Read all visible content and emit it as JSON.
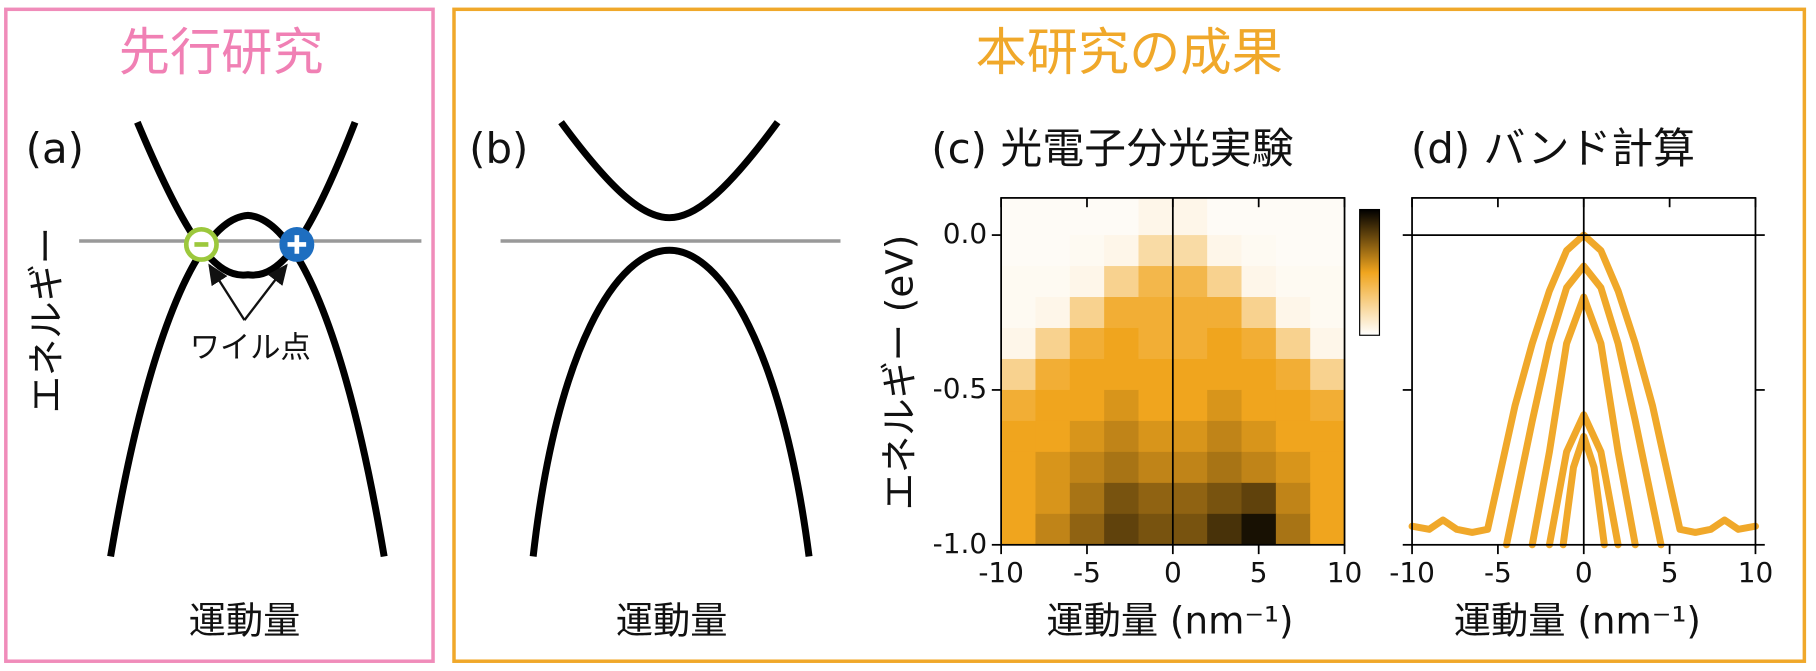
{
  "header": {
    "previous_work": "先行研究",
    "this_work": "本研究の成果"
  },
  "schematic_a": {
    "label": "(a)",
    "ylabel": "エネルギー",
    "annotation": "ワイル点",
    "xlabel": "運動量"
  },
  "schematic_b": {
    "label": "(b)",
    "xlabel": "運動量"
  },
  "chart_data": [
    {
      "type": "heatmap",
      "title": "(c) 光電子分光実験",
      "xlabel": "運動量 (nm⁻¹)",
      "ylabel": "エネルギー (eV)",
      "xlim": [
        -10,
        10
      ],
      "ylim": [
        -1.0,
        0.12
      ],
      "xticks": [
        -10,
        -5,
        0,
        5,
        10
      ],
      "yticks": [
        {
          "value": 0,
          "label": "0.0"
        },
        {
          "value": -0.5,
          "label": "-0.5"
        },
        {
          "value": -1.0,
          "label": "-1.0"
        }
      ],
      "xzero": true,
      "yzero": false,
      "colormap": [
        "#ffffff",
        "#f0a51e",
        "#000000"
      ],
      "xbins": [
        -10,
        -8,
        -6,
        -4,
        -2,
        0,
        2,
        4,
        6,
        8,
        10
      ],
      "ybins": [
        0.12,
        0,
        -0.1,
        -0.2,
        -0.3,
        -0.4,
        -0.5,
        -0.6,
        -0.7,
        -0.8,
        -0.9,
        -1.0
      ],
      "z": [
        [
          0.02,
          0.02,
          0.02,
          0.02,
          0.05,
          0.05,
          0.02,
          0.02,
          0.02,
          0.02
        ],
        [
          0.02,
          0.02,
          0.03,
          0.05,
          0.2,
          0.2,
          0.05,
          0.03,
          0.02,
          0.02
        ],
        [
          0.03,
          0.03,
          0.05,
          0.25,
          0.4,
          0.4,
          0.25,
          0.05,
          0.03,
          0.03
        ],
        [
          0.03,
          0.05,
          0.25,
          0.45,
          0.45,
          0.45,
          0.45,
          0.25,
          0.05,
          0.03
        ],
        [
          0.05,
          0.25,
          0.45,
          0.5,
          0.45,
          0.45,
          0.5,
          0.45,
          0.25,
          0.05
        ],
        [
          0.25,
          0.45,
          0.5,
          0.5,
          0.5,
          0.5,
          0.5,
          0.5,
          0.45,
          0.25
        ],
        [
          0.45,
          0.5,
          0.5,
          0.55,
          0.5,
          0.5,
          0.55,
          0.5,
          0.5,
          0.45
        ],
        [
          0.5,
          0.5,
          0.55,
          0.6,
          0.55,
          0.55,
          0.6,
          0.55,
          0.5,
          0.5
        ],
        [
          0.5,
          0.55,
          0.6,
          0.65,
          0.6,
          0.6,
          0.65,
          0.6,
          0.55,
          0.5
        ],
        [
          0.5,
          0.55,
          0.65,
          0.75,
          0.7,
          0.7,
          0.75,
          0.8,
          0.6,
          0.5
        ],
        [
          0.5,
          0.6,
          0.7,
          0.8,
          0.75,
          0.75,
          0.85,
          0.95,
          0.65,
          0.5
        ]
      ]
    },
    {
      "type": "line",
      "title": "(d) バンド計算",
      "xlabel": "運動量 (nm⁻¹)",
      "xlim": [
        -10,
        10
      ],
      "ylim": [
        -1.0,
        0.12
      ],
      "xticks": [
        -10,
        -5,
        0,
        5,
        10
      ],
      "yticks": [
        0,
        -0.5,
        -1.0
      ],
      "ytick_labels": false,
      "xzero": true,
      "yzero": true,
      "series": [
        {
          "color": "#f0a82a",
          "x": [
            -10,
            -9,
            -8.2,
            -7.4,
            -6.5,
            -5.6,
            -5,
            -4,
            -3,
            -2,
            -1,
            0,
            1,
            2,
            3,
            4,
            5,
            5.6,
            6.5,
            7.4,
            8.2,
            9,
            10
          ],
          "values": [
            -0.94,
            -0.95,
            -0.92,
            -0.95,
            -0.96,
            -0.95,
            -0.8,
            -0.55,
            -0.35,
            -0.18,
            -0.05,
            0,
            -0.05,
            -0.18,
            -0.35,
            -0.55,
            -0.8,
            -0.95,
            -0.96,
            -0.95,
            -0.92,
            -0.95,
            -0.94
          ]
        },
        {
          "color": "#f0a82a",
          "x": [
            -4.5,
            -3,
            -2,
            -1,
            0,
            1,
            2,
            3,
            4.5
          ],
          "values": [
            -1.0,
            -0.6,
            -0.35,
            -0.17,
            -0.1,
            -0.17,
            -0.35,
            -0.6,
            -1.0
          ]
        },
        {
          "color": "#f0a82a",
          "x": [
            -3,
            -2,
            -1,
            0,
            1,
            2,
            3
          ],
          "values": [
            -1.0,
            -0.7,
            -0.35,
            -0.2,
            -0.35,
            -0.7,
            -1.0
          ]
        },
        {
          "color": "#f0a82a",
          "x": [
            -2,
            -1,
            0,
            1,
            2
          ],
          "values": [
            -1.0,
            -0.7,
            -0.58,
            -0.7,
            -1.0
          ]
        },
        {
          "color": "#f0a82a",
          "x": [
            -1.2,
            -0.6,
            0,
            0.6,
            1.2
          ],
          "values": [
            -1.0,
            -0.75,
            -0.65,
            -0.75,
            -1.0
          ]
        }
      ]
    }
  ]
}
